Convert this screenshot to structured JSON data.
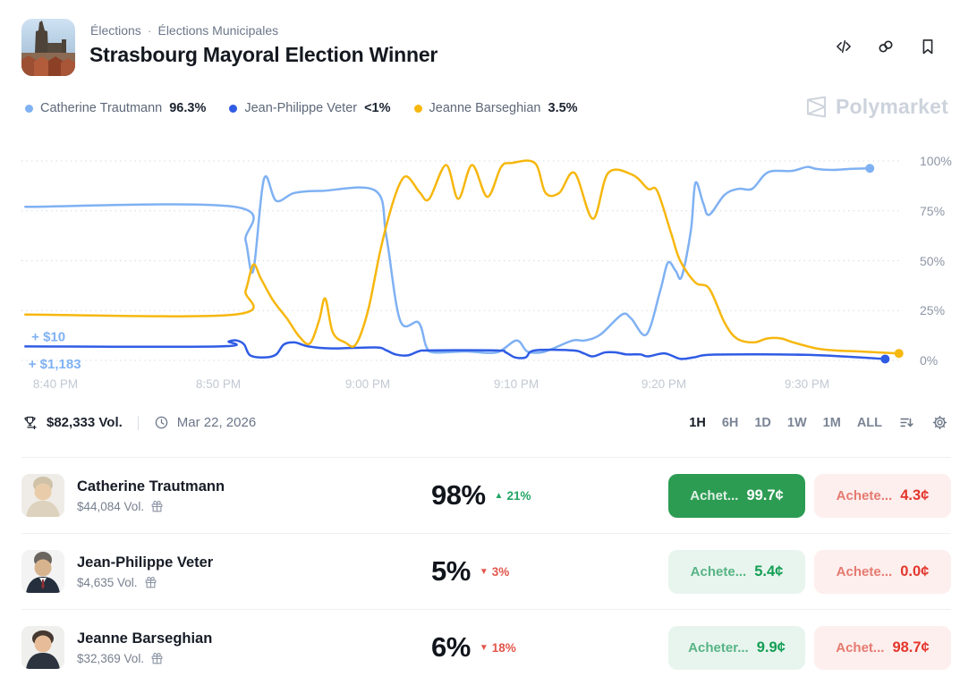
{
  "header": {
    "breadcrumb_parts": [
      "Élections",
      "Élections Municipales"
    ],
    "breadcrumb_separator": "·",
    "title": "Strasbourg Mayoral Election Winner"
  },
  "watermark": {
    "text": "Polymarket"
  },
  "legend": [
    {
      "name": "Catherine Trautmann",
      "value": "96.3%",
      "color": "#7fb1f3"
    },
    {
      "name": "Jean-Philippe Veter",
      "value": "<1%",
      "color": "#2f5ce5"
    },
    {
      "name": "Jeanne Barseghian",
      "value": "3.5%",
      "color": "#f6b70e"
    }
  ],
  "chart_data": {
    "type": "line",
    "title": "Strasbourg Mayoral Election Winner — win probability over time",
    "x_axis": {
      "labels": [
        "8:40 PM",
        "8:50 PM",
        "9:00 PM",
        "9:10 PM",
        "9:20 PM",
        "9:30 PM"
      ],
      "unit": "minutes after 8:40 PM",
      "tick_minutes": [
        0,
        10,
        20,
        30,
        40,
        50
      ]
    },
    "y_axis": {
      "labels": [
        "100%",
        "75%",
        "50%",
        "25%",
        "0%"
      ],
      "gridlines_pct": [
        0,
        25,
        50,
        75,
        100
      ],
      "range": [
        0,
        100
      ]
    },
    "annotations": [
      {
        "text": "+ $10",
        "t": -0.4,
        "pct": 16,
        "color": "#7fb1f3"
      },
      {
        "text": "+ $1,183",
        "t": -0.6,
        "pct": 2.2,
        "color": "#7fb1f3"
      }
    ],
    "series": [
      {
        "name": "Catherine Trautmann",
        "color": "#7fb1f3",
        "end_value": 96.3,
        "points": [
          [
            -0.8,
            77
          ],
          [
            12.9,
            77
          ],
          [
            13.6,
            60
          ],
          [
            14.1,
            45
          ],
          [
            14.8,
            91
          ],
          [
            15.6,
            80
          ],
          [
            16.8,
            84
          ],
          [
            18.6,
            85
          ],
          [
            22.1,
            85
          ],
          [
            22.8,
            62
          ],
          [
            23.7,
            20
          ],
          [
            24.9,
            19
          ],
          [
            25.4,
            7
          ],
          [
            25.9,
            4
          ],
          [
            28,
            4.5
          ],
          [
            30,
            4
          ],
          [
            31.3,
            10
          ],
          [
            32,
            4.5
          ],
          [
            32.9,
            4
          ],
          [
            33.7,
            6
          ],
          [
            35,
            10
          ],
          [
            35.8,
            10
          ],
          [
            36.8,
            13
          ],
          [
            38.2,
            23
          ],
          [
            38.8,
            21
          ],
          [
            39.8,
            13
          ],
          [
            40.7,
            35
          ],
          [
            41.2,
            49
          ],
          [
            41.7,
            45
          ],
          [
            42.1,
            42
          ],
          [
            42.7,
            65
          ],
          [
            43,
            89
          ],
          [
            43.5,
            79
          ],
          [
            43.9,
            73
          ],
          [
            44.9,
            83
          ],
          [
            45.8,
            86
          ],
          [
            46.7,
            86
          ],
          [
            47.5,
            93
          ],
          [
            48.1,
            95
          ],
          [
            49.3,
            95
          ],
          [
            50.3,
            97
          ],
          [
            50.9,
            96
          ],
          [
            51.9,
            95.5
          ],
          [
            53.1,
            96
          ],
          [
            54.4,
            96.3
          ]
        ]
      },
      {
        "name": "Jean-Philippe Veter",
        "color": "#2f5ce5",
        "end_value": 0.7,
        "points": [
          [
            -0.8,
            7
          ],
          [
            11.9,
            7
          ],
          [
            12.5,
            9.5
          ],
          [
            13,
            10
          ],
          [
            13.5,
            8
          ],
          [
            13.9,
            2.5
          ],
          [
            14.9,
            1.5
          ],
          [
            15.6,
            3
          ],
          [
            16.1,
            8
          ],
          [
            16.8,
            9
          ],
          [
            17.7,
            7
          ],
          [
            19.2,
            6
          ],
          [
            22.1,
            6.5
          ],
          [
            22.8,
            5
          ],
          [
            23.4,
            3
          ],
          [
            24.2,
            2.5
          ],
          [
            24.9,
            4.5
          ],
          [
            25.6,
            5
          ],
          [
            30,
            5
          ],
          [
            30.6,
            4
          ],
          [
            31.2,
            1.5
          ],
          [
            31.9,
            1.5
          ],
          [
            32.5,
            5
          ],
          [
            35,
            5
          ],
          [
            35.7,
            3.5
          ],
          [
            36.3,
            2
          ],
          [
            37.1,
            4
          ],
          [
            37.8,
            4
          ],
          [
            38.5,
            3
          ],
          [
            39.4,
            3
          ],
          [
            39.9,
            2
          ],
          [
            41,
            3.5
          ],
          [
            42,
            0.8
          ],
          [
            42.9,
            1.5
          ],
          [
            43.9,
            2.8
          ],
          [
            47.3,
            3
          ],
          [
            50.2,
            2.8
          ],
          [
            51.9,
            2.3
          ],
          [
            53.7,
            1.5
          ],
          [
            55.4,
            0.7
          ]
        ]
      },
      {
        "name": "Jeanne Barseghian",
        "color": "#f6b70e",
        "end_value": 3.5,
        "points": [
          [
            -0.8,
            23
          ],
          [
            12.9,
            23
          ],
          [
            13.6,
            35
          ],
          [
            14.1,
            48
          ],
          [
            14.6,
            41
          ],
          [
            15.4,
            30
          ],
          [
            16.3,
            21
          ],
          [
            17.1,
            12
          ],
          [
            17.8,
            8.5
          ],
          [
            18.4,
            20
          ],
          [
            18.8,
            31
          ],
          [
            19.3,
            14
          ],
          [
            20.1,
            9
          ],
          [
            20.8,
            8
          ],
          [
            21.6,
            25
          ],
          [
            22.4,
            55
          ],
          [
            23.1,
            76
          ],
          [
            23.7,
            89
          ],
          [
            24.2,
            92
          ],
          [
            25,
            84
          ],
          [
            25.6,
            81
          ],
          [
            26.7,
            98
          ],
          [
            27.5,
            81
          ],
          [
            28.4,
            98
          ],
          [
            29.4,
            82
          ],
          [
            30.3,
            97
          ],
          [
            31,
            99
          ],
          [
            32.5,
            99
          ],
          [
            33.2,
            84
          ],
          [
            34.1,
            84
          ],
          [
            35.1,
            94
          ],
          [
            36.3,
            71
          ],
          [
            37.3,
            94
          ],
          [
            38.9,
            93
          ],
          [
            39.9,
            86
          ],
          [
            40.5,
            85
          ],
          [
            41.4,
            64
          ],
          [
            42,
            50
          ],
          [
            43,
            39
          ],
          [
            43.9,
            36
          ],
          [
            44.9,
            19
          ],
          [
            45.7,
            11
          ],
          [
            46.8,
            9
          ],
          [
            47.7,
            11
          ],
          [
            48.6,
            11
          ],
          [
            49.4,
            9
          ],
          [
            50.9,
            6
          ],
          [
            52.1,
            5
          ],
          [
            53.7,
            4.5
          ],
          [
            56.3,
            3.5
          ]
        ]
      }
    ]
  },
  "toolbar": {
    "volume": "$82,333 Vol.",
    "date": "Mar 22, 2026",
    "ranges": [
      "1H",
      "6H",
      "1D",
      "1W",
      "1M",
      "ALL"
    ],
    "active_range": "1H"
  },
  "outcomes": [
    {
      "name": "Catherine Trautmann",
      "volume": "$44,084 Vol.",
      "chance": "98%",
      "change": "21%",
      "change_dir": "up",
      "yes_active": true,
      "buy_yes_label": "Achet...",
      "buy_yes_price": "99.7¢",
      "buy_no_label": "Achete...",
      "buy_no_price": "4.3¢"
    },
    {
      "name": "Jean-Philippe Veter",
      "volume": "$4,635 Vol.",
      "chance": "5%",
      "change": "3%",
      "change_dir": "down",
      "yes_active": false,
      "buy_yes_label": "Achete...",
      "buy_yes_price": "5.4¢",
      "buy_no_label": "Achete...",
      "buy_no_price": "0.0¢"
    },
    {
      "name": "Jeanne Barseghian",
      "volume": "$32,369 Vol.",
      "chance": "6%",
      "change": "18%",
      "change_dir": "down",
      "yes_active": false,
      "buy_yes_label": "Acheter...",
      "buy_yes_price": "9.9¢",
      "buy_no_label": "Achet...",
      "buy_no_price": "98.7¢"
    }
  ]
}
